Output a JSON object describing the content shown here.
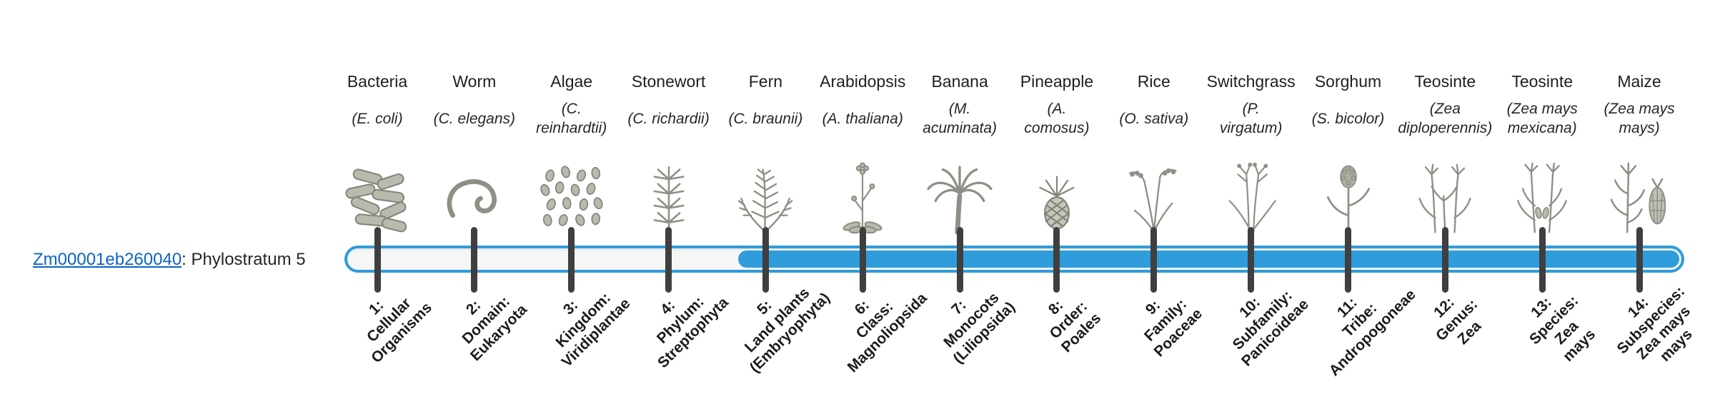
{
  "gene": {
    "id": "Zm00001eb260040",
    "suffix": ": Phylostratum 5",
    "phylostratum": 5
  },
  "colors": {
    "bar_blue": "#2f9cdb",
    "bar_track": "#f6f6f6",
    "tick": "#3f3f3f",
    "link_blue": "#0b63c5",
    "text": "#262626",
    "illustration_gray": "#8f8f85"
  },
  "species": [
    {
      "common": "Bacteria",
      "scientific": "(E. coli)",
      "icon": "bacteria"
    },
    {
      "common": "Worm",
      "scientific": "(C. elegans)",
      "icon": "worm"
    },
    {
      "common": "Algae",
      "scientific": "(C.\nreinhardtii)",
      "icon": "algae"
    },
    {
      "common": "Stonewort",
      "scientific": "(C. richardii)",
      "icon": "stonewort"
    },
    {
      "common": "Fern",
      "scientific": "(C. braunii)",
      "icon": "fern"
    },
    {
      "common": "Arabidopsis",
      "scientific": "(A. thaliana)",
      "icon": "arabidopsis"
    },
    {
      "common": "Banana",
      "scientific": "(M.\nacuminata)",
      "icon": "banana"
    },
    {
      "common": "Pineapple",
      "scientific": "(A.\ncomosus)",
      "icon": "pineapple"
    },
    {
      "common": "Rice",
      "scientific": "(O. sativa)",
      "icon": "rice"
    },
    {
      "common": "Switchgrass",
      "scientific": "(P.\nvirgatum)",
      "icon": "switchgrass"
    },
    {
      "common": "Sorghum",
      "scientific": "(S. bicolor)",
      "icon": "sorghum"
    },
    {
      "common": "Teosinte",
      "scientific": "(Zea\ndiploperennis)",
      "icon": "teosinte-diploperennis"
    },
    {
      "common": "Teosinte",
      "scientific": "(Zea mays\nmexicana)",
      "icon": "teosinte-mexicana"
    },
    {
      "common": "Maize",
      "scientific": "(Zea mays\nmays)",
      "icon": "maize"
    }
  ],
  "strata": [
    {
      "label": "1:\nCellular\nOrganisms"
    },
    {
      "label": "2:\nDomain:\nEukaryota"
    },
    {
      "label": "3:\nKingdom:\nViridiplantae"
    },
    {
      "label": "4:\nPhylum:\nStreptophyta"
    },
    {
      "label": "5:\nLand plants\n(Embryophyta)"
    },
    {
      "label": "6:\nClass:\nMagnoliopsida"
    },
    {
      "label": "7:\nMonocots\n(Liliopsida)"
    },
    {
      "label": "8:\nOrder:\nPoales"
    },
    {
      "label": "9:\nFamily:\nPoaceae"
    },
    {
      "label": "10:\nSubfamily:\nPanicoideae"
    },
    {
      "label": "11:\nTribe:\nAndropogoneae"
    },
    {
      "label": "12:\nGenus:\nZea"
    },
    {
      "label": "13:\nSpecies:\nZea\nmays"
    },
    {
      "label": "14:\nSubspecies:\nZea mays\nmays"
    }
  ]
}
